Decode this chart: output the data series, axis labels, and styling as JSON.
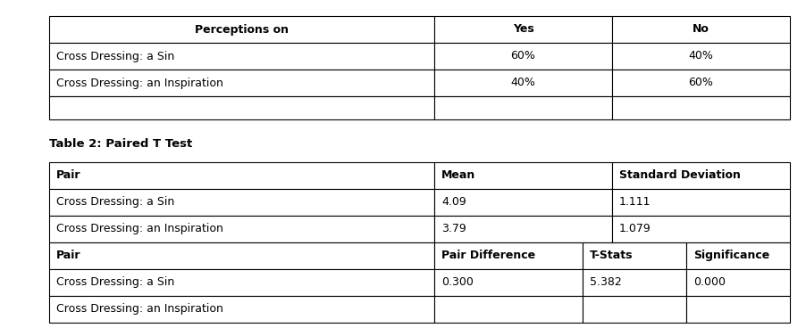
{
  "table1_header": [
    "Perceptions on",
    "Yes",
    "No"
  ],
  "table1_rows": [
    [
      "Cross Dressing: a Sin",
      "60%",
      "40%"
    ],
    [
      "Cross Dressing: an Inspiration",
      "40%",
      "60%"
    ],
    [
      "",
      "",
      ""
    ]
  ],
  "table2_label": "Table 2: Paired T Test",
  "table2a_header": [
    "Pair",
    "Mean",
    "Standard Deviation"
  ],
  "table2a_rows": [
    [
      "Cross Dressing: a Sin",
      "4.09",
      "1.111"
    ],
    [
      "Cross Dressing: an Inspiration",
      "3.79",
      "1.079"
    ]
  ],
  "table2b_header": [
    "Pair",
    "Pair Difference",
    "T-Stats",
    "Significance"
  ],
  "table2b_rows": [
    [
      "Cross Dressing: a Sin",
      "0.300",
      "5.382",
      "0.000"
    ],
    [
      "Cross Dressing: an Inspiration",
      "",
      "",
      ""
    ]
  ],
  "bg_color": "#ffffff",
  "border_color": "#000000",
  "text_color": "#000000",
  "font_size": 9.0
}
